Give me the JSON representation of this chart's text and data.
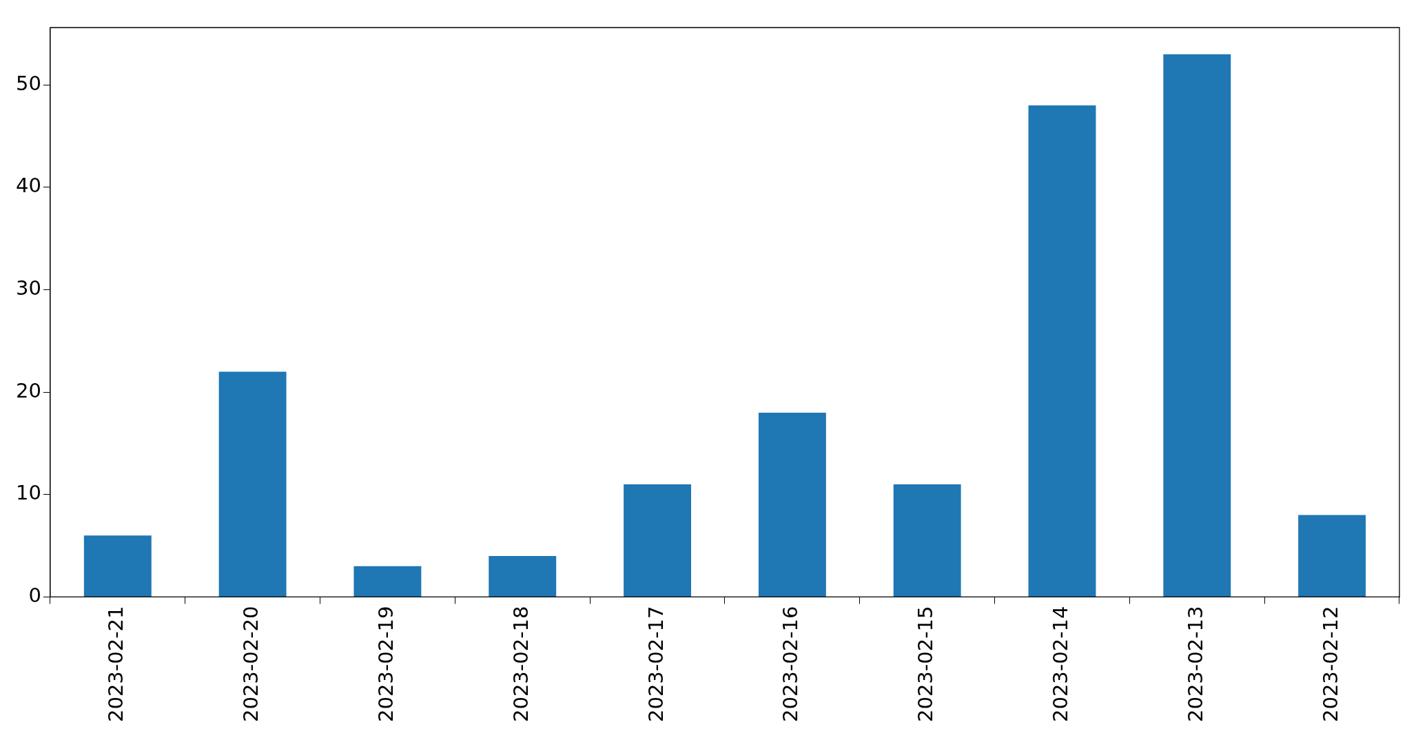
{
  "chart_data": {
    "type": "bar",
    "categories": [
      "2023-02-21",
      "2023-02-20",
      "2023-02-19",
      "2023-02-18",
      "2023-02-17",
      "2023-02-16",
      "2023-02-15",
      "2023-02-14",
      "2023-02-13",
      "2023-02-12"
    ],
    "values": [
      6,
      22,
      3,
      4,
      11,
      18,
      11,
      48,
      53,
      8
    ],
    "color": "#1f77b4",
    "ylim": [
      0,
      55.6
    ],
    "yticks": [
      0,
      10,
      20,
      30,
      40,
      50
    ],
    "grid": false,
    "legend": false
  }
}
